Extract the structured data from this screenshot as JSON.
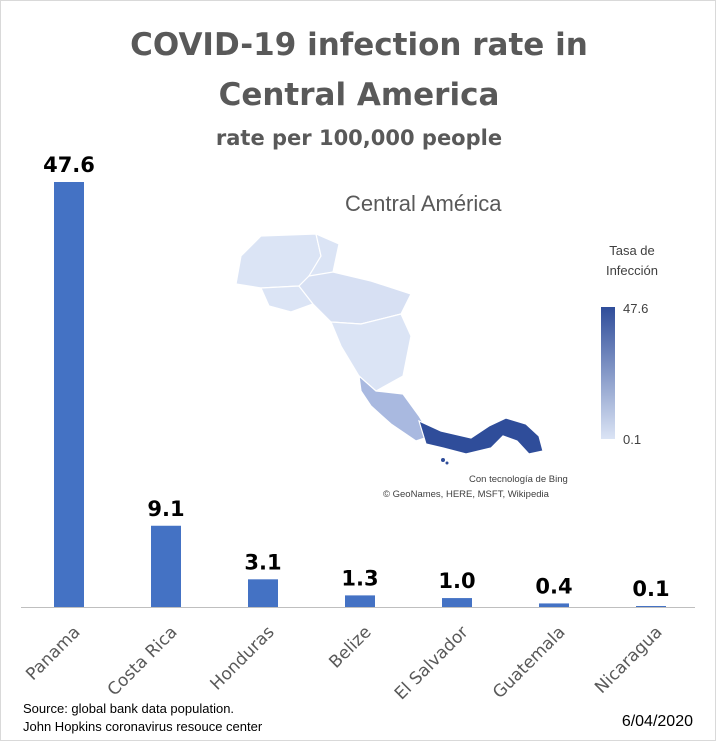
{
  "title_line1": "COVID-19 infection rate in",
  "title_line2": "Central America",
  "subtitle": "rate per 100,000 people",
  "map": {
    "title": "Central América",
    "legend_title_line1": "Tasa de",
    "legend_title_line2": "Infección",
    "legend_max": "47.6",
    "legend_min": "0.1",
    "credit_line1": "Con tecnología de Bing",
    "credit_line2": "© GeoNames, HERE, MSFT, Wikipedia",
    "colors": {
      "low": "#dbe4f5",
      "mid": "#a9b9e0",
      "high": "#2f4d9a"
    }
  },
  "footer": {
    "source_line1": "Source: global bank data population.",
    "source_line2": "John Hopkins coronavirus resouce center",
    "date": "6/04/2020"
  },
  "chart_data": {
    "type": "bar",
    "title": "COVID-19 infection rate in Central America",
    "subtitle": "rate per 100,000 people",
    "categories": [
      "Panama",
      "Costa Rica",
      "Honduras",
      "Belize",
      "El Salvador",
      "Guatemala",
      "Nicaragua"
    ],
    "values": [
      47.6,
      9.1,
      3.1,
      1.3,
      1.0,
      0.4,
      0.1
    ],
    "data_labels": [
      "47.6",
      "9.1",
      "3.1",
      "1.3",
      "1.0",
      "0.4",
      "0.1"
    ],
    "ylim": [
      0,
      47.6
    ],
    "grid": false,
    "bar_color": "#4472c4"
  }
}
